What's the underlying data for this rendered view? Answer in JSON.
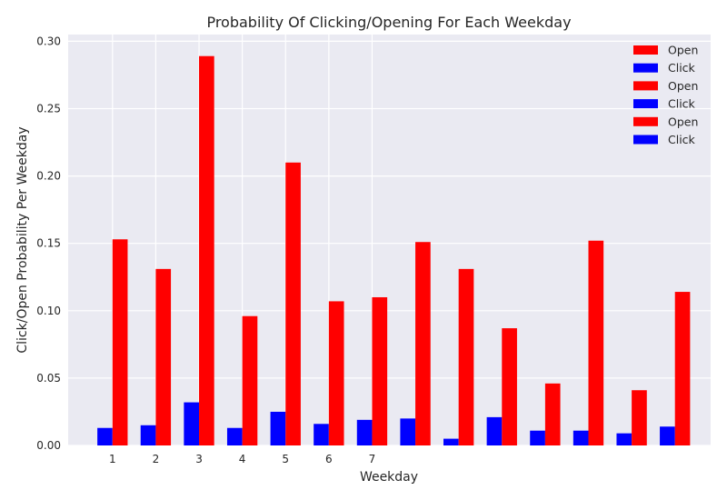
{
  "chart_data": {
    "type": "bar",
    "title": "Probability Of Clicking/Opening For Each Weekday",
    "xlabel": "Weekday",
    "ylabel": "Click/Open Probability Per Weekday",
    "ylim": [
      0,
      0.305
    ],
    "yticks": [
      "0.00",
      "0.05",
      "0.10",
      "0.15",
      "0.20",
      "0.25",
      "0.30"
    ],
    "xtick_labels": [
      "1",
      "2",
      "3",
      "4",
      "5",
      "6",
      "7"
    ],
    "grid": true,
    "legend_position": "top-right",
    "legend": [
      "Open",
      "Click",
      "Open",
      "Click",
      "Open",
      "Click"
    ],
    "series": [
      {
        "name": "Click",
        "color": "#0000ff",
        "values": [
          0.013,
          0.015,
          0.032,
          0.013,
          0.025,
          0.016,
          0.019,
          0.02,
          0.005,
          0.021,
          0.011,
          0.011,
          0.009,
          0.014
        ]
      },
      {
        "name": "Open",
        "color": "#ff0000",
        "values": [
          0.153,
          0.131,
          0.289,
          0.096,
          0.21,
          0.107,
          0.11,
          0.151,
          0.131,
          0.087,
          0.046,
          0.152,
          0.041,
          0.114
        ]
      }
    ],
    "plot_background": "#eaeaf2",
    "grid_color": "#ffffff"
  }
}
